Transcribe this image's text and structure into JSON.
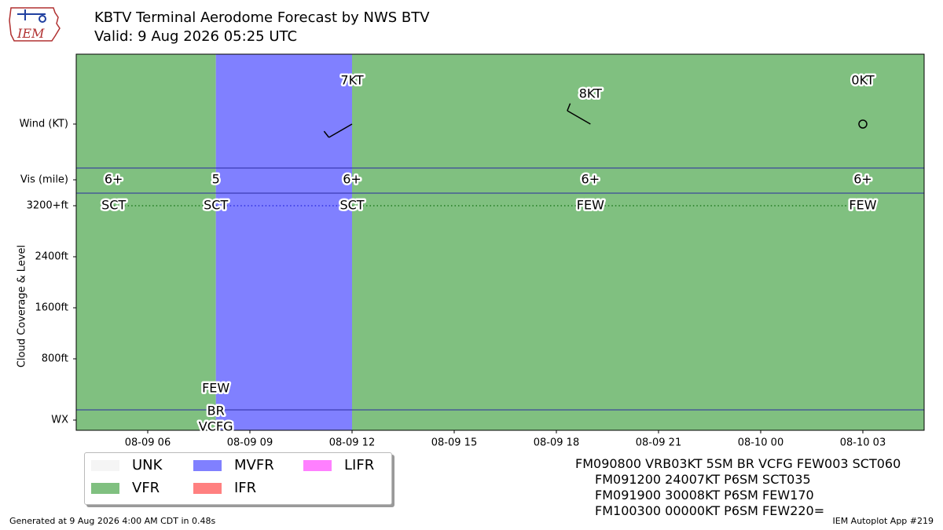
{
  "header": {
    "title": "KBTV Terminal Aerodome Forecast by NWS BTV",
    "subtitle": "Valid: 9 Aug 2026 05:25 UTC",
    "logo_text": "IEM"
  },
  "footer": {
    "generated": "Generated at 9 Aug 2026 4:00 AM CDT in 0.48s",
    "app": "IEM Autoplot App #219"
  },
  "taf_text": [
    "FM090800 VRB03KT 5SM BR VCFG FEW003 SCT060",
    "FM091200 24007KT P6SM SCT035",
    "FM091900 30008KT P6SM FEW170",
    "FM100300 00000KT P6SM FEW220="
  ],
  "legend": [
    {
      "label": "UNK",
      "color": "#f5f5f5"
    },
    {
      "label": "VFR",
      "color": "#80c080"
    },
    {
      "label": "MVFR",
      "color": "#8080ff"
    },
    {
      "label": "IFR",
      "color": "#ff8080"
    },
    {
      "label": "LIFR",
      "color": "#ff80ff"
    }
  ],
  "chart_data": {
    "type": "timeline",
    "x_range_hours": [
      -1.1,
      23.8
    ],
    "x_ticks": [
      {
        "h": 1,
        "label": "08-09 06"
      },
      {
        "h": 4,
        "label": "08-09 09"
      },
      {
        "h": 7,
        "label": "08-09 12"
      },
      {
        "h": 10,
        "label": "08-09 15"
      },
      {
        "h": 13,
        "label": "08-09 18"
      },
      {
        "h": 16,
        "label": "08-09 21"
      },
      {
        "h": 19,
        "label": "08-10 00"
      },
      {
        "h": 22,
        "label": "08-10 03"
      }
    ],
    "x_axis_note": "hours since 08-09 05:00 UTC",
    "y_ticks": [
      {
        "label": "Wind (KT)",
        "row": "wind"
      },
      {
        "label": "Vis (mile)",
        "row": "vis"
      },
      {
        "label": "3200+ft",
        "ft": 3200
      },
      {
        "label": "2400ft",
        "ft": 2400
      },
      {
        "label": "1600ft",
        "ft": 1600
      },
      {
        "label": "800ft",
        "ft": 800
      },
      {
        "label": "WX",
        "row": "wx"
      }
    ],
    "ylabel": "Cloud Coverage & Level",
    "categories_colors": {
      "VFR": "#80c080",
      "MVFR": "#8080ff"
    },
    "periods": [
      {
        "start": -1.1,
        "end": 3,
        "category": "VFR"
      },
      {
        "start": 3,
        "end": 7,
        "category": "MVFR"
      },
      {
        "start": 7,
        "end": 23.8,
        "category": "VFR"
      }
    ],
    "visibility": [
      {
        "h": 0,
        "label": "6+"
      },
      {
        "h": 3,
        "label": "5"
      },
      {
        "h": 7,
        "label": "6+"
      },
      {
        "h": 14,
        "label": "6+"
      },
      {
        "h": 22,
        "label": "6+"
      }
    ],
    "wind": [
      {
        "h": 7,
        "speed_kt": 7,
        "dir_deg": 240,
        "label": "7KT"
      },
      {
        "h": 14,
        "speed_kt": 8,
        "dir_deg": 300,
        "label": "8KT"
      },
      {
        "h": 22,
        "speed_kt": 0,
        "dir_deg": 0,
        "label": "0KT"
      }
    ],
    "clouds": [
      {
        "h": 0,
        "cover": "SCT",
        "ft": 3200
      },
      {
        "h": 3,
        "cover": "SCT",
        "ft": 3200
      },
      {
        "h": 3,
        "cover": "FEW",
        "ft": 300
      },
      {
        "h": 7,
        "cover": "SCT",
        "ft": 3200
      },
      {
        "h": 14,
        "cover": "FEW",
        "ft": 3200
      },
      {
        "h": 22,
        "cover": "FEW",
        "ft": 3200
      }
    ],
    "weather": [
      {
        "h": 3,
        "text": "BR"
      },
      {
        "h": 3,
        "text": "VCFG"
      }
    ]
  }
}
